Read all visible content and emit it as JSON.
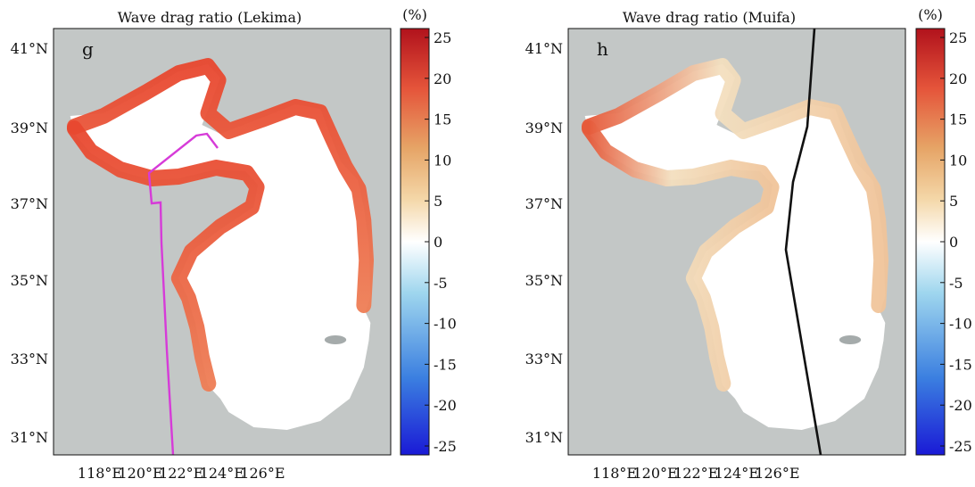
{
  "panels": [
    {
      "letter": "g",
      "title": "Wave drag ratio (Lekima)",
      "track_color": "#d63bd8"
    },
    {
      "letter": "h",
      "title": "Wave drag ratio (Muifa)",
      "track_color": "#111111"
    }
  ],
  "axes": {
    "lat_labels": [
      "41°N",
      "39°N",
      "37°N",
      "35°N",
      "33°N",
      "31°N"
    ],
    "lon_labels": [
      "118°E",
      "120°E",
      "122°E",
      "124°E",
      "126°E"
    ]
  },
  "colorbar": {
    "unit": "(%)",
    "ticks": [
      "25",
      "20",
      "15",
      "10",
      "5",
      "0",
      "-5",
      "-10",
      "-15",
      "-20",
      "-25"
    ],
    "range": [
      -25,
      25
    ],
    "colors": [
      "#1a1ad6",
      "#3b7fe0",
      "#9fd6ee",
      "#ffffff",
      "#f4d7a8",
      "#e6a466",
      "#e5543a",
      "#b1121c"
    ]
  }
}
